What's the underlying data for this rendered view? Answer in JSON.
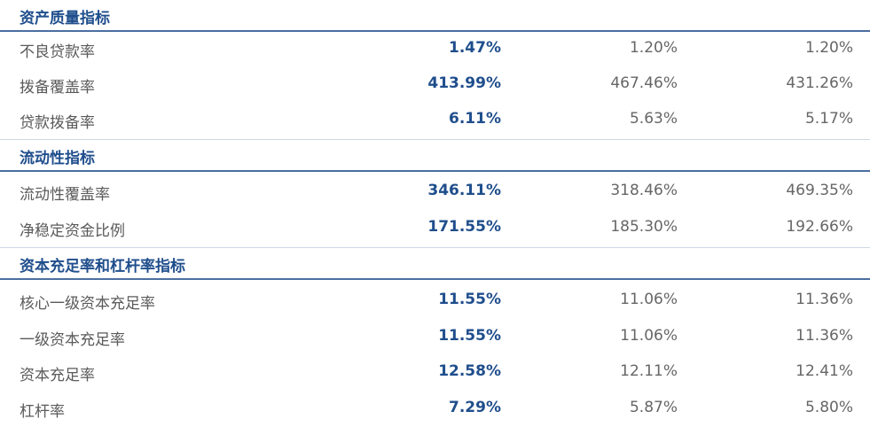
{
  "sections": [
    {
      "title": "资产质量指标",
      "rows": [
        {
          "label": "不良贷款率",
          "v1": "1.47%",
          "v2": "1.20%",
          "v3": "1.20%"
        },
        {
          "label": "拨备覆盖率",
          "v1": "413.99%",
          "v2": "467.46%",
          "v3": "431.26%"
        },
        {
          "label": "贷款拨备率",
          "v1": "6.11%",
          "v2": "5.63%",
          "v3": "5.17%"
        }
      ]
    },
    {
      "title": "流动性指标",
      "rows": [
        {
          "label": "流动性覆盖率",
          "v1": "346.11%",
          "v2": "318.46%",
          "v3": "469.35%"
        },
        {
          "label": "净稳定资金比例",
          "v1": "171.55%",
          "v2": "185.30%",
          "v3": "192.66%"
        }
      ]
    },
    {
      "title": "资本充足率和杠杆率指标",
      "rows": [
        {
          "label": "核心一级资本充足率",
          "v1": "11.55%",
          "v2": "11.06%",
          "v3": "11.36%"
        },
        {
          "label": "一级资本充足率",
          "v1": "11.55%",
          "v2": "11.06%",
          "v3": "11.36%"
        },
        {
          "label": "资本充足率",
          "v1": "12.58%",
          "v2": "12.11%",
          "v3": "12.41%"
        },
        {
          "label": "杠杆率",
          "v1": "7.29%",
          "v2": "5.87%",
          "v3": "5.80%"
        }
      ]
    }
  ],
  "colors": {
    "accent": "#1f4e8c",
    "rule": "#4b6fa0",
    "text": "#5a5a5a"
  }
}
